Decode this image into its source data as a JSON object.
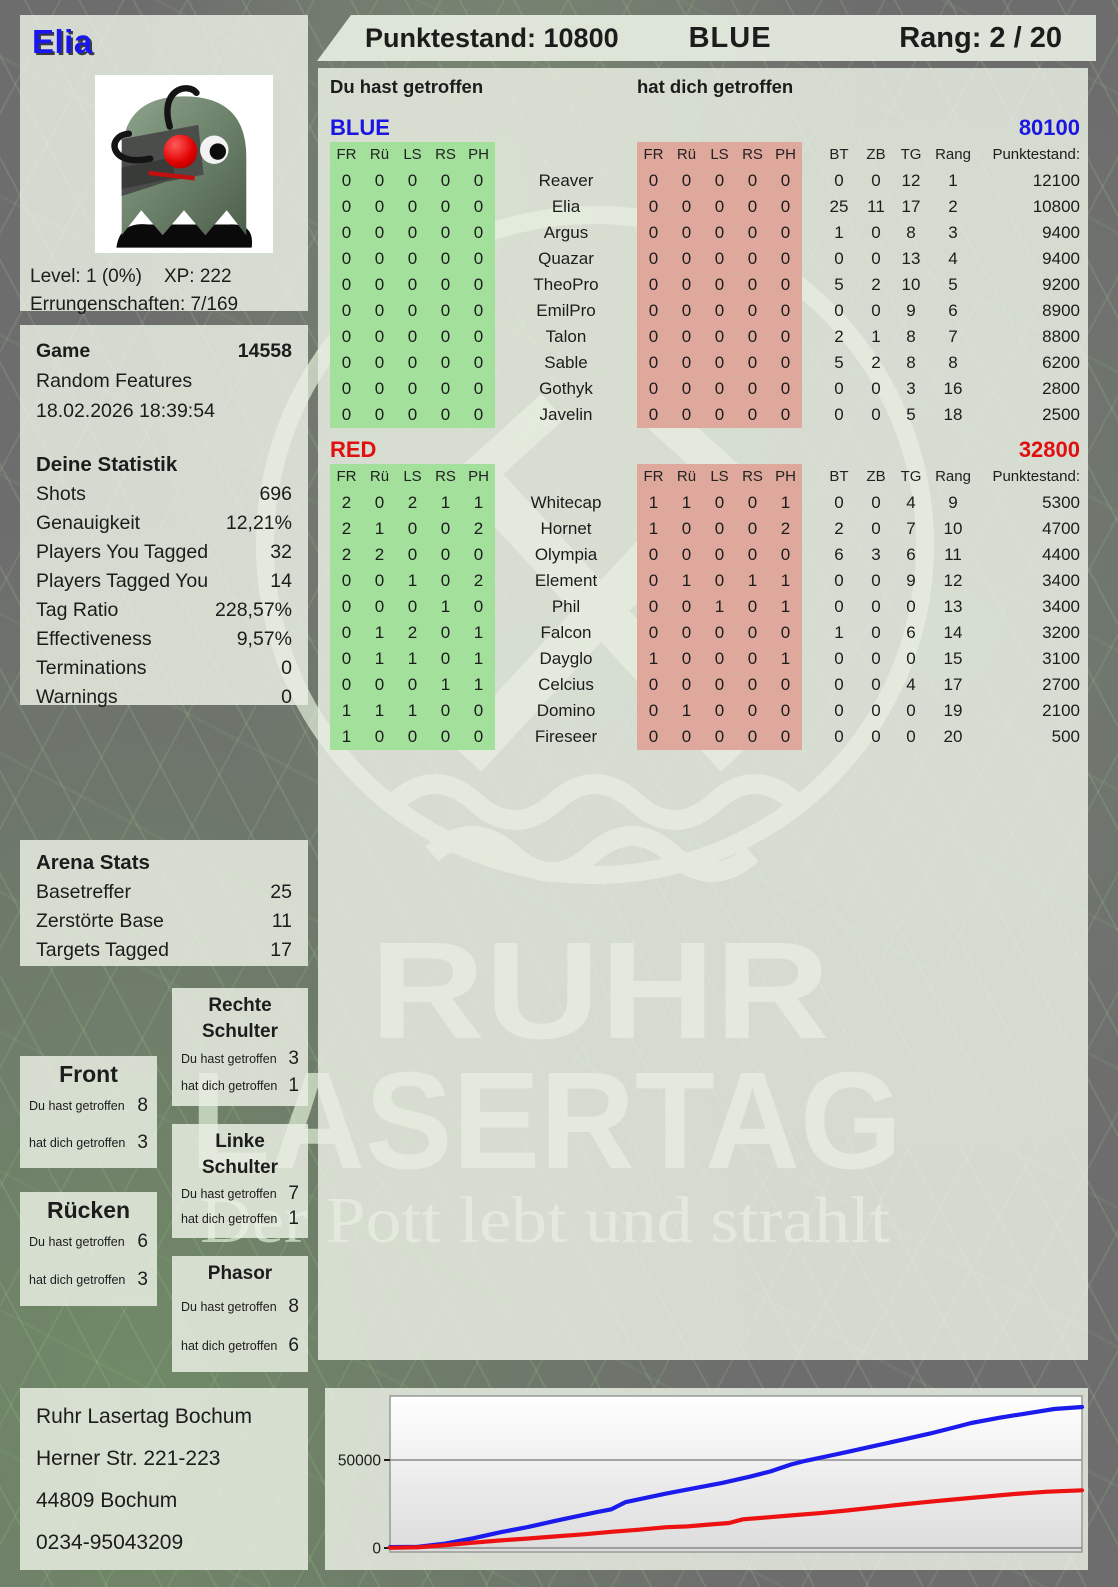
{
  "header": {
    "player_name": "Elia",
    "punktestand_label": "Punktestand: 10800",
    "team": "BLUE",
    "rang_label": "Rang: 2 / 20"
  },
  "profile": {
    "avatar_alt": "cyborg-ghost-avatar",
    "level_label": "Level: 1 (0%)",
    "xp_label": "XP: 222",
    "achievements_label": "Errungenschaften: 7/169"
  },
  "game": {
    "title": "Game",
    "id": "14558",
    "mode": "Random Features",
    "datetime": "18.02.2026 18:39:54"
  },
  "your_stats": {
    "title": "Deine Statistik",
    "rows": [
      [
        "Shots",
        "696"
      ],
      [
        "Genauigkeit",
        "12,21%"
      ],
      [
        "Players You Tagged",
        "32"
      ],
      [
        "Players Tagged You",
        "14"
      ],
      [
        "Tag Ratio",
        "228,57%"
      ],
      [
        "Effectiveness",
        "9,57%"
      ],
      [
        "Terminations",
        "0"
      ],
      [
        "Warnings",
        "0"
      ]
    ]
  },
  "arena_stats": {
    "title": "Arena Stats",
    "rows": [
      [
        "Basetreffer",
        "25"
      ],
      [
        "Zerstörte Base",
        "11"
      ],
      [
        "Targets Tagged",
        "17"
      ]
    ]
  },
  "hit_zones": {
    "hit_label": "Du hast getroffen",
    "got_label": "hat dich getroffen",
    "boxes": [
      {
        "title": "Front",
        "hit": "8",
        "got": "3",
        "large": true
      },
      {
        "title": "Rücken",
        "hit": "6",
        "got": "3",
        "large": true
      },
      {
        "title": "Rechte Schulter",
        "hit": "3",
        "got": "1",
        "large": false
      },
      {
        "title": "Linke Schulter",
        "hit": "7",
        "got": "1",
        "large": false
      },
      {
        "title": "Phasor",
        "hit": "8",
        "got": "6",
        "large": false
      }
    ]
  },
  "scoreboard": {
    "hit_header": "Du hast getroffen",
    "got_header": "hat dich getroffen",
    "zone_cols": [
      "FR",
      "Rü",
      "LS",
      "RS",
      "PH"
    ],
    "stat_cols": [
      "BT",
      "ZB",
      "TG",
      "Rang",
      "Punktestand:"
    ],
    "teams": [
      {
        "name": "BLUE",
        "color": "#1a15e0",
        "score": "80100",
        "rows": [
          {
            "hit": [
              0,
              0,
              0,
              0,
              0
            ],
            "player": "Reaver",
            "got": [
              0,
              0,
              0,
              0,
              0
            ],
            "bt": "0",
            "zb": "0",
            "tg": "12",
            "rang": "1",
            "punkte": "12100"
          },
          {
            "hit": [
              0,
              0,
              0,
              0,
              0
            ],
            "player": "Elia",
            "got": [
              0,
              0,
              0,
              0,
              0
            ],
            "bt": "25",
            "zb": "11",
            "tg": "17",
            "rang": "2",
            "punkte": "10800"
          },
          {
            "hit": [
              0,
              0,
              0,
              0,
              0
            ],
            "player": "Argus",
            "got": [
              0,
              0,
              0,
              0,
              0
            ],
            "bt": "1",
            "zb": "0",
            "tg": "8",
            "rang": "3",
            "punkte": "9400"
          },
          {
            "hit": [
              0,
              0,
              0,
              0,
              0
            ],
            "player": "Quazar",
            "got": [
              0,
              0,
              0,
              0,
              0
            ],
            "bt": "0",
            "zb": "0",
            "tg": "13",
            "rang": "4",
            "punkte": "9400"
          },
          {
            "hit": [
              0,
              0,
              0,
              0,
              0
            ],
            "player": "TheoPro",
            "got": [
              0,
              0,
              0,
              0,
              0
            ],
            "bt": "5",
            "zb": "2",
            "tg": "10",
            "rang": "5",
            "punkte": "9200"
          },
          {
            "hit": [
              0,
              0,
              0,
              0,
              0
            ],
            "player": "EmilPro",
            "got": [
              0,
              0,
              0,
              0,
              0
            ],
            "bt": "0",
            "zb": "0",
            "tg": "9",
            "rang": "6",
            "punkte": "8900"
          },
          {
            "hit": [
              0,
              0,
              0,
              0,
              0
            ],
            "player": "Talon",
            "got": [
              0,
              0,
              0,
              0,
              0
            ],
            "bt": "2",
            "zb": "1",
            "tg": "8",
            "rang": "7",
            "punkte": "8800"
          },
          {
            "hit": [
              0,
              0,
              0,
              0,
              0
            ],
            "player": "Sable",
            "got": [
              0,
              0,
              0,
              0,
              0
            ],
            "bt": "5",
            "zb": "2",
            "tg": "8",
            "rang": "8",
            "punkte": "6200"
          },
          {
            "hit": [
              0,
              0,
              0,
              0,
              0
            ],
            "player": "Gothyk",
            "got": [
              0,
              0,
              0,
              0,
              0
            ],
            "bt": "0",
            "zb": "0",
            "tg": "3",
            "rang": "16",
            "punkte": "2800"
          },
          {
            "hit": [
              0,
              0,
              0,
              0,
              0
            ],
            "player": "Javelin",
            "got": [
              0,
              0,
              0,
              0,
              0
            ],
            "bt": "0",
            "zb": "0",
            "tg": "5",
            "rang": "18",
            "punkte": "2500"
          }
        ]
      },
      {
        "name": "RED",
        "color": "#e01010",
        "score": "32800",
        "rows": [
          {
            "hit": [
              2,
              0,
              2,
              1,
              1
            ],
            "player": "Whitecap",
            "got": [
              1,
              1,
              0,
              0,
              1
            ],
            "bt": "0",
            "zb": "0",
            "tg": "4",
            "rang": "9",
            "punkte": "5300"
          },
          {
            "hit": [
              2,
              1,
              0,
              0,
              2
            ],
            "player": "Hornet",
            "got": [
              1,
              0,
              0,
              0,
              2
            ],
            "bt": "2",
            "zb": "0",
            "tg": "7",
            "rang": "10",
            "punkte": "4700"
          },
          {
            "hit": [
              2,
              2,
              0,
              0,
              0
            ],
            "player": "Olympia",
            "got": [
              0,
              0,
              0,
              0,
              0
            ],
            "bt": "6",
            "zb": "3",
            "tg": "6",
            "rang": "11",
            "punkte": "4400"
          },
          {
            "hit": [
              0,
              0,
              1,
              0,
              2
            ],
            "player": "Element",
            "got": [
              0,
              1,
              0,
              1,
              1
            ],
            "bt": "0",
            "zb": "0",
            "tg": "9",
            "rang": "12",
            "punkte": "3400"
          },
          {
            "hit": [
              0,
              0,
              0,
              1,
              0
            ],
            "player": "Phil",
            "got": [
              0,
              0,
              1,
              0,
              1
            ],
            "bt": "0",
            "zb": "0",
            "tg": "0",
            "rang": "13",
            "punkte": "3400"
          },
          {
            "hit": [
              0,
              1,
              2,
              0,
              1
            ],
            "player": "Falcon",
            "got": [
              0,
              0,
              0,
              0,
              0
            ],
            "bt": "1",
            "zb": "0",
            "tg": "6",
            "rang": "14",
            "punkte": "3200"
          },
          {
            "hit": [
              0,
              1,
              1,
              0,
              1
            ],
            "player": "Dayglo",
            "got": [
              1,
              0,
              0,
              0,
              1
            ],
            "bt": "0",
            "zb": "0",
            "tg": "0",
            "rang": "15",
            "punkte": "3100"
          },
          {
            "hit": [
              0,
              0,
              0,
              1,
              1
            ],
            "player": "Celcius",
            "got": [
              0,
              0,
              0,
              0,
              0
            ],
            "bt": "0",
            "zb": "0",
            "tg": "4",
            "rang": "17",
            "punkte": "2700"
          },
          {
            "hit": [
              1,
              1,
              1,
              0,
              0
            ],
            "player": "Domino",
            "got": [
              0,
              1,
              0,
              0,
              0
            ],
            "bt": "0",
            "zb": "0",
            "tg": "0",
            "rang": "19",
            "punkte": "2100"
          },
          {
            "hit": [
              1,
              0,
              0,
              0,
              0
            ],
            "player": "Fireseer",
            "got": [
              0,
              0,
              0,
              0,
              0
            ],
            "bt": "0",
            "zb": "0",
            "tg": "0",
            "rang": "20",
            "punkte": "500"
          }
        ]
      }
    ]
  },
  "address": {
    "lines": [
      "Ruhr Lasertag Bochum",
      "Herner Str. 221-223",
      "44809 Bochum",
      "0234-95043209"
    ]
  },
  "watermark": {
    "line1": "RUHR",
    "line2": "LASERTAG",
    "tagline": "Der Pott lebt und strahlt"
  },
  "chart_data": {
    "type": "line",
    "title": "",
    "xlabel": "",
    "ylabel": "",
    "yticks": [
      0,
      50000
    ],
    "ylim": [
      0,
      86000
    ],
    "x_unit": "percent_of_game_time",
    "legend_position": "none",
    "grid": "horizontal",
    "series": [
      {
        "name": "BLUE",
        "color": "#1b1bee",
        "final_score": 80100,
        "points": [
          [
            0,
            500
          ],
          [
            4,
            700
          ],
          [
            8,
            2500
          ],
          [
            12,
            5500
          ],
          [
            16,
            9000
          ],
          [
            20,
            12000
          ],
          [
            24,
            15500
          ],
          [
            27,
            18000
          ],
          [
            30,
            20500
          ],
          [
            32,
            22000
          ],
          [
            34,
            26000
          ],
          [
            37,
            28500
          ],
          [
            40,
            31000
          ],
          [
            44,
            34000
          ],
          [
            48,
            37000
          ],
          [
            52,
            40500
          ],
          [
            55,
            43500
          ],
          [
            58,
            47500
          ],
          [
            60,
            49500
          ],
          [
            63,
            52000
          ],
          [
            66,
            54500
          ],
          [
            70,
            58000
          ],
          [
            74,
            61500
          ],
          [
            78,
            65000
          ],
          [
            82,
            69000
          ],
          [
            84,
            71000
          ],
          [
            88,
            74000
          ],
          [
            92,
            76500
          ],
          [
            96,
            79000
          ],
          [
            100,
            80100
          ]
        ]
      },
      {
        "name": "RED",
        "color": "#ee1111",
        "final_score": 32800,
        "points": [
          [
            0,
            100
          ],
          [
            4,
            400
          ],
          [
            8,
            1600
          ],
          [
            12,
            3000
          ],
          [
            16,
            4300
          ],
          [
            20,
            5400
          ],
          [
            24,
            6600
          ],
          [
            28,
            7800
          ],
          [
            32,
            9200
          ],
          [
            36,
            10400
          ],
          [
            40,
            11800
          ],
          [
            43,
            12300
          ],
          [
            46,
            13300
          ],
          [
            49,
            14200
          ],
          [
            51,
            16300
          ],
          [
            54,
            17200
          ],
          [
            58,
            18500
          ],
          [
            62,
            19800
          ],
          [
            66,
            21300
          ],
          [
            70,
            23000
          ],
          [
            74,
            24700
          ],
          [
            78,
            26300
          ],
          [
            82,
            27800
          ],
          [
            86,
            29200
          ],
          [
            90,
            30600
          ],
          [
            95,
            32000
          ],
          [
            100,
            32800
          ]
        ]
      }
    ]
  }
}
